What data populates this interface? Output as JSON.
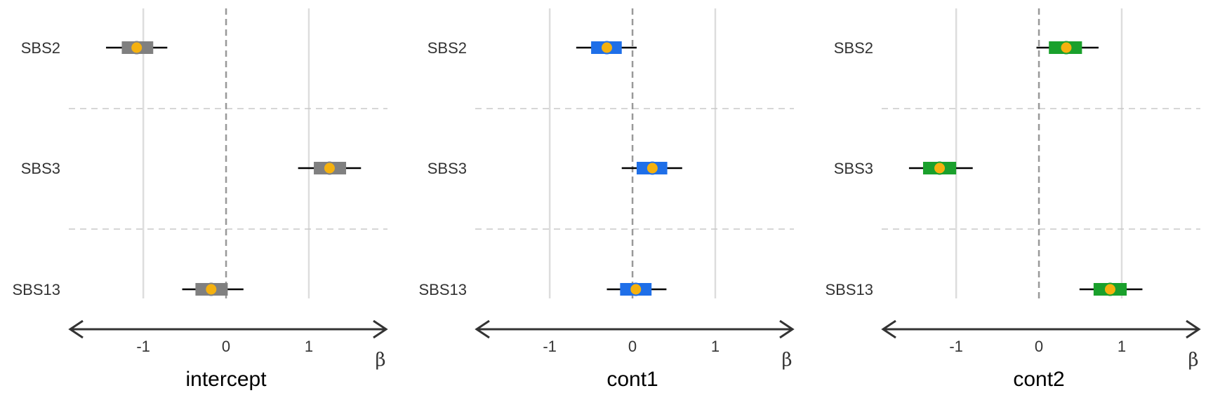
{
  "chart_data": [
    {
      "type": "forest",
      "title": "intercept",
      "xlabel": "β",
      "categories": [
        "SBS2",
        "SBS3",
        "SBS13"
      ],
      "x_ticks": [
        "-1",
        "0",
        "1"
      ],
      "xlim": [
        -1.9,
        1.95
      ],
      "box_color": "#808080",
      "point_color": "#F5B10F",
      "estimates": [
        -1.08,
        1.25,
        -0.18
      ],
      "box_low": [
        -1.26,
        1.06,
        -0.37
      ],
      "box_high": [
        -0.88,
        1.45,
        0.02
      ],
      "ci_low": [
        -1.45,
        0.87,
        -0.53
      ],
      "ci_high": [
        -0.71,
        1.63,
        0.21
      ]
    },
    {
      "type": "forest",
      "title": "cont1",
      "xlabel": "β",
      "categories": [
        "SBS2",
        "SBS3",
        "SBS13"
      ],
      "x_ticks": [
        "-1",
        "0",
        "1"
      ],
      "xlim": [
        -1.9,
        1.95
      ],
      "box_color": "#1F6FE8",
      "point_color": "#F5B10F",
      "estimates": [
        -0.31,
        0.24,
        0.04
      ],
      "box_low": [
        -0.5,
        0.05,
        -0.15
      ],
      "box_high": [
        -0.13,
        0.42,
        0.23
      ],
      "ci_low": [
        -0.68,
        -0.13,
        -0.31
      ],
      "ci_high": [
        0.05,
        0.6,
        0.41
      ]
    },
    {
      "type": "forest",
      "title": "cont2",
      "xlabel": "β",
      "categories": [
        "SBS2",
        "SBS3",
        "SBS13"
      ],
      "x_ticks": [
        "-1",
        "0",
        "1"
      ],
      "xlim": [
        -1.9,
        1.95
      ],
      "box_color": "#1AA02C",
      "point_color": "#F5B10F",
      "estimates": [
        0.33,
        -1.2,
        0.86
      ],
      "box_low": [
        0.12,
        -1.4,
        0.66
      ],
      "box_high": [
        0.52,
        -1.0,
        1.06
      ],
      "ci_low": [
        -0.03,
        -1.57,
        0.49
      ],
      "ci_high": [
        0.72,
        -0.8,
        1.25
      ]
    }
  ],
  "colors": {
    "grid": "#DDDDDD",
    "divider": "#C8C8C8",
    "zero_line": "#999999",
    "axis": "#333333",
    "whisker": "#000000"
  }
}
